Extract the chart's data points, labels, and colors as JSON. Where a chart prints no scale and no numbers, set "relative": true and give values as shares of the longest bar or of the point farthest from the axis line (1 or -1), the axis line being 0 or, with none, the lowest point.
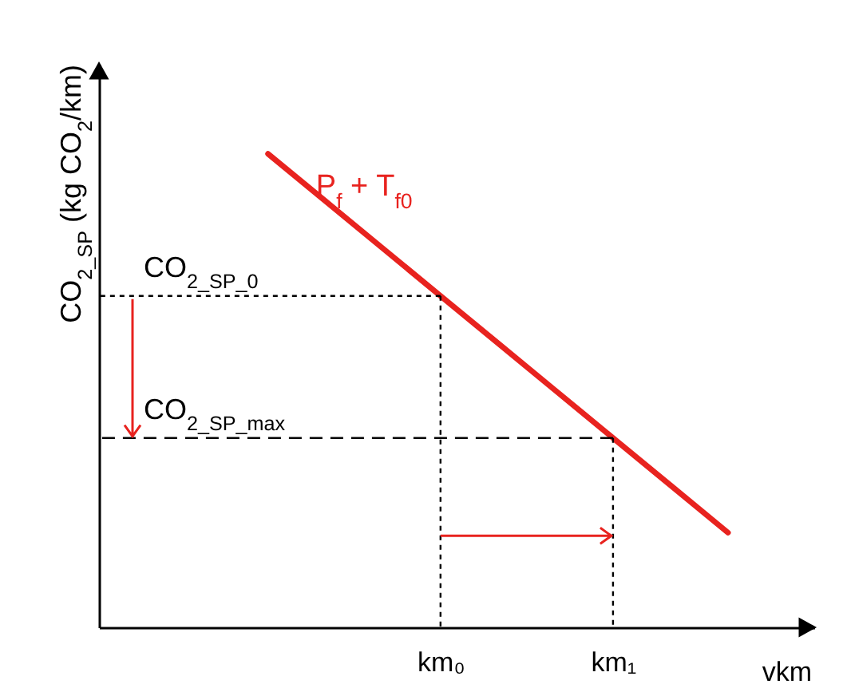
{
  "chart_data": {
    "type": "line",
    "relative": true,
    "xlabel": "vkm",
    "ylabel": "CO$_{2_SP}$ (kg CO$_{2}$/km)",
    "categories": [
      null,
      null,
      null,
      "km₀",
      null,
      null,
      "km₁",
      null,
      null
    ],
    "series": [
      {
        "name": "P$_{f}$ + T$_{f0}$",
        "color": "#e8231f",
        "values": [
          1,
          0.9,
          0.8,
          0.7,
          0.6,
          0.5,
          0.4,
          0.3,
          0.2
        ]
      }
    ],
    "ref_lines": [
      {
        "axis": "y",
        "value": 0.7,
        "label": "CO$_{2_SP_0}$",
        "color": "#000000",
        "line_style": "dotted"
      },
      {
        "axis": "y",
        "value": 0.4,
        "label": "CO$_{2_SP_max}$",
        "color": "#000000",
        "line_style": "dashed"
      },
      {
        "axis": "x",
        "value": "km₀",
        "color": "#000000",
        "line_style": "dotted"
      },
      {
        "axis": "x",
        "value": "km₁",
        "color": "#000000",
        "line_style": "dotted"
      }
    ]
  }
}
